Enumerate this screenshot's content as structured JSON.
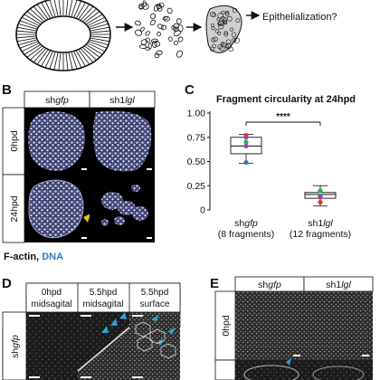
{
  "panel_a": {
    "arrow_text": "Epithelialization?"
  },
  "panel_b": {
    "letter": "B",
    "col_headers": [
      {
        "prefix": "sh",
        "italic": "gfp"
      },
      {
        "prefix": "sh1",
        "italic": "lgl"
      }
    ],
    "row_labels": [
      "0hpd",
      "24hpd"
    ],
    "legend_factin": "F-actin,",
    "legend_dna": "DNA",
    "colors": {
      "dna_blue": "#2a7fc1",
      "arrowhead": "#e3c21a"
    }
  },
  "panel_c": {
    "letter": "C"
  },
  "chart_data": {
    "type": "box",
    "title": "Fragment circularity at 24hpd",
    "ylim": [
      0,
      1.0
    ],
    "yticks": [
      0,
      0.25,
      0.5,
      0.75,
      1.0
    ],
    "ytick_labels": [
      "0",
      "0.25",
      "0.50",
      "0.75",
      "1.00"
    ],
    "categories": [
      {
        "label_prefix": "sh",
        "label_italic": "gfp",
        "sublabel": "(8 fragments)"
      },
      {
        "label_prefix": "sh1",
        "label_italic": "lgl",
        "sublabel": "(12 fragments)"
      }
    ],
    "boxes": [
      {
        "min": 0.48,
        "q1": 0.58,
        "median": 0.66,
        "q3": 0.75,
        "max": 0.78
      },
      {
        "min": 0.04,
        "q1": 0.12,
        "median": 0.16,
        "q3": 0.18,
        "max": 0.25
      }
    ],
    "points": [
      [
        {
          "value": 0.77,
          "color": "#e2362b"
        },
        {
          "value": 0.75,
          "color": "#9b3fb5"
        },
        {
          "value": 0.7,
          "color": "#2eb24a"
        },
        {
          "value": 0.66,
          "color": "#9b3fb5"
        },
        {
          "value": 0.49,
          "color": "#2a7fc1"
        }
      ],
      [
        {
          "value": 0.2,
          "color": "#2eb24a"
        },
        {
          "value": 0.14,
          "color": "#2a7fc1"
        },
        {
          "value": 0.13,
          "color": "#9b3fb5"
        },
        {
          "value": 0.08,
          "color": "#e2362b"
        }
      ]
    ],
    "significance": "****"
  },
  "panel_d": {
    "letter": "D",
    "col_headers": [
      [
        "0hpd",
        "midsagital"
      ],
      [
        "5.5hpd",
        "midsagital"
      ],
      [
        "5.5hpd",
        "surface"
      ]
    ],
    "row_label": {
      "prefix": "sh",
      "italic": "gfp"
    },
    "arrow_color": "#29a3d8"
  },
  "panel_e": {
    "letter": "E",
    "col_headers": [
      {
        "prefix": "sh",
        "italic": "gfp"
      },
      {
        "prefix": "sh1",
        "italic": "lgl"
      }
    ],
    "row_label": "0hpd"
  }
}
